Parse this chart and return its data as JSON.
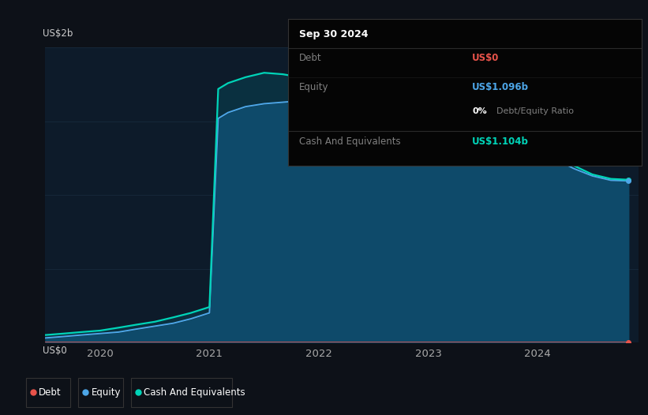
{
  "bg_color": "#0d1118",
  "plot_bg_color": "#0d1b2a",
  "fill_main_color": "#0e4a6a",
  "fill_top_color": "#0a3040",
  "grid_color": "#1a2e40",
  "ylabel_text": "US$2b",
  "y0_text": "US$0",
  "x_ticks": [
    "2020",
    "2021",
    "2022",
    "2023",
    "2024"
  ],
  "x_tick_pos": [
    2020,
    2021,
    2022,
    2023,
    2024
  ],
  "legend": [
    {
      "label": "Debt",
      "color": "#e8534a"
    },
    {
      "label": "Equity",
      "color": "#4da6e8"
    },
    {
      "label": "Cash And Equivalents",
      "color": "#00d4b8"
    }
  ],
  "time": [
    2019.5,
    2019.67,
    2019.83,
    2020.0,
    2020.17,
    2020.33,
    2020.5,
    2020.67,
    2020.83,
    2021.0,
    2021.08,
    2021.17,
    2021.33,
    2021.5,
    2021.67,
    2021.83,
    2022.0,
    2022.17,
    2022.33,
    2022.5,
    2022.67,
    2022.83,
    2023.0,
    2023.17,
    2023.33,
    2023.5,
    2023.67,
    2023.83,
    2024.0,
    2024.17,
    2024.33,
    2024.5,
    2024.67,
    2024.83
  ],
  "equity": [
    0.03,
    0.04,
    0.05,
    0.06,
    0.07,
    0.09,
    0.11,
    0.13,
    0.16,
    0.2,
    1.52,
    1.56,
    1.6,
    1.62,
    1.63,
    1.64,
    1.65,
    1.67,
    1.68,
    1.66,
    1.64,
    1.62,
    1.58,
    1.54,
    1.5,
    1.45,
    1.4,
    1.35,
    1.3,
    1.24,
    1.18,
    1.13,
    1.1,
    1.096
  ],
  "cash": [
    0.05,
    0.06,
    0.07,
    0.08,
    0.1,
    0.12,
    0.14,
    0.17,
    0.2,
    0.24,
    1.72,
    1.76,
    1.8,
    1.83,
    1.82,
    1.8,
    1.79,
    1.88,
    1.92,
    1.88,
    1.82,
    1.76,
    1.7,
    1.63,
    1.56,
    1.5,
    1.44,
    1.38,
    1.32,
    1.26,
    1.2,
    1.14,
    1.11,
    1.104
  ],
  "debt": [
    0.0,
    0.0,
    0.0,
    0.0,
    0.0,
    0.0,
    0.0,
    0.0,
    0.0,
    0.0,
    0.0,
    0.0,
    0.0,
    0.0,
    0.0,
    0.0,
    0.0,
    0.0,
    0.0,
    0.0,
    0.0,
    0.0,
    0.0,
    0.0,
    0.0,
    0.0,
    0.0,
    0.0,
    0.0,
    0.0,
    0.0,
    0.0,
    0.0,
    0.0
  ],
  "ylim": [
    0,
    2.0
  ],
  "xlim": [
    2019.5,
    2024.92
  ],
  "box_date": "Sep 30 2024",
  "box_debt_label": "Debt",
  "box_debt_value": "US$0",
  "box_debt_color": "#e8534a",
  "box_equity_label": "Equity",
  "box_equity_value": "US$1.096b",
  "box_equity_color": "#4da6e8",
  "box_ratio": "0%",
  "box_ratio_suffix": " Debt/Equity Ratio",
  "box_cash_label": "Cash And Equivalents",
  "box_cash_value": "US$1.104b",
  "box_cash_color": "#00d4b8"
}
